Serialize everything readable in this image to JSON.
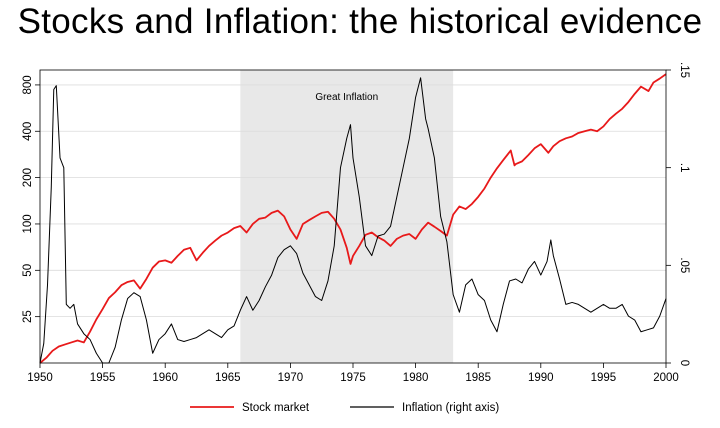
{
  "title": "Stocks and Inflation: the historical evidence",
  "chart_data": {
    "type": "line",
    "title": "Stocks and Inflation: the historical evidence",
    "x_range": [
      1950,
      2000
    ],
    "x_ticks": [
      1950,
      1955,
      1960,
      1965,
      1970,
      1975,
      1980,
      1985,
      1990,
      1995,
      2000
    ],
    "left_axis": {
      "scale": "log",
      "range": [
        12.5,
        1000
      ],
      "ticks": [
        25,
        50,
        100,
        200,
        400,
        800
      ],
      "tick_labels": [
        "25",
        "50",
        "100",
        "200",
        "400",
        "800"
      ]
    },
    "right_axis": {
      "scale": "linear",
      "range": [
        0,
        0.15
      ],
      "ticks": [
        0,
        0.05,
        0.1,
        0.15
      ],
      "tick_labels": [
        "0",
        ".05",
        ".1",
        ".15"
      ]
    },
    "grid": true,
    "shaded_region": {
      "from": 1966,
      "to": 1983,
      "label": "Great Inflation",
      "color": "#e8e8e8"
    },
    "legend_position": "bottom",
    "series": [
      {
        "name": "Stock market",
        "axis": "left",
        "color": "#e8191a",
        "points": [
          [
            1950.0,
            12.5
          ],
          [
            1950.5,
            13.5
          ],
          [
            1951.0,
            15.0
          ],
          [
            1951.5,
            16.0
          ],
          [
            1952.0,
            16.5
          ],
          [
            1952.5,
            17.0
          ],
          [
            1953.0,
            17.5
          ],
          [
            1953.5,
            17.0
          ],
          [
            1954.0,
            20.0
          ],
          [
            1954.5,
            24.0
          ],
          [
            1955.0,
            28.0
          ],
          [
            1955.5,
            33.0
          ],
          [
            1956.0,
            36.0
          ],
          [
            1956.5,
            40.0
          ],
          [
            1957.0,
            42.0
          ],
          [
            1957.5,
            43.0
          ],
          [
            1958.0,
            38.0
          ],
          [
            1958.5,
            44.0
          ],
          [
            1959.0,
            52.0
          ],
          [
            1959.5,
            57.0
          ],
          [
            1960.0,
            58.0
          ],
          [
            1960.5,
            56.0
          ],
          [
            1961.0,
            62.0
          ],
          [
            1961.5,
            68.0
          ],
          [
            1962.0,
            70.0
          ],
          [
            1962.5,
            58.0
          ],
          [
            1963.0,
            65.0
          ],
          [
            1963.5,
            72.0
          ],
          [
            1964.0,
            78.0
          ],
          [
            1964.5,
            84.0
          ],
          [
            1965.0,
            88.0
          ],
          [
            1965.5,
            94.0
          ],
          [
            1966.0,
            97.0
          ],
          [
            1966.5,
            88.0
          ],
          [
            1967.0,
            100.0
          ],
          [
            1967.5,
            108.0
          ],
          [
            1968.0,
            110.0
          ],
          [
            1968.5,
            118.0
          ],
          [
            1969.0,
            122.0
          ],
          [
            1969.5,
            112.0
          ],
          [
            1970.0,
            92.0
          ],
          [
            1970.5,
            80.0
          ],
          [
            1971.0,
            100.0
          ],
          [
            1971.5,
            106.0
          ],
          [
            1972.0,
            112.0
          ],
          [
            1972.5,
            118.0
          ],
          [
            1973.0,
            120.0
          ],
          [
            1973.5,
            108.0
          ],
          [
            1974.0,
            92.0
          ],
          [
            1974.5,
            70.0
          ],
          [
            1974.8,
            55.0
          ],
          [
            1975.0,
            62.0
          ],
          [
            1975.5,
            72.0
          ],
          [
            1976.0,
            85.0
          ],
          [
            1976.5,
            88.0
          ],
          [
            1977.0,
            82.0
          ],
          [
            1977.5,
            78.0
          ],
          [
            1978.0,
            72.0
          ],
          [
            1978.5,
            80.0
          ],
          [
            1979.0,
            84.0
          ],
          [
            1979.5,
            86.0
          ],
          [
            1980.0,
            80.0
          ],
          [
            1980.5,
            92.0
          ],
          [
            1981.0,
            102.0
          ],
          [
            1981.5,
            96.0
          ],
          [
            1982.0,
            90.0
          ],
          [
            1982.5,
            84.0
          ],
          [
            1983.0,
            115.0
          ],
          [
            1983.5,
            130.0
          ],
          [
            1984.0,
            125.0
          ],
          [
            1984.5,
            135.0
          ],
          [
            1985.0,
            150.0
          ],
          [
            1985.5,
            170.0
          ],
          [
            1986.0,
            200.0
          ],
          [
            1986.5,
            230.0
          ],
          [
            1987.0,
            260.0
          ],
          [
            1987.6,
            300.0
          ],
          [
            1987.9,
            240.0
          ],
          [
            1988.0,
            245.0
          ],
          [
            1988.5,
            255.0
          ],
          [
            1989.0,
            280.0
          ],
          [
            1989.5,
            310.0
          ],
          [
            1990.0,
            330.0
          ],
          [
            1990.6,
            290.0
          ],
          [
            1991.0,
            320.0
          ],
          [
            1991.5,
            345.0
          ],
          [
            1992.0,
            360.0
          ],
          [
            1992.5,
            370.0
          ],
          [
            1993.0,
            390.0
          ],
          [
            1993.5,
            400.0
          ],
          [
            1994.0,
            410.0
          ],
          [
            1994.5,
            400.0
          ],
          [
            1995.0,
            430.0
          ],
          [
            1995.5,
            480.0
          ],
          [
            1996.0,
            520.0
          ],
          [
            1996.5,
            560.0
          ],
          [
            1997.0,
            620.0
          ],
          [
            1997.5,
            700.0
          ],
          [
            1998.0,
            780.0
          ],
          [
            1998.6,
            730.0
          ],
          [
            1999.0,
            830.0
          ],
          [
            1999.5,
            880.0
          ],
          [
            2000.0,
            940.0
          ]
        ]
      },
      {
        "name": "Inflation (right axis)",
        "axis": "right",
        "color": "#000000",
        "points": [
          [
            1950.0,
            0.0
          ],
          [
            1950.3,
            0.01
          ],
          [
            1950.6,
            0.04
          ],
          [
            1950.9,
            0.09
          ],
          [
            1951.1,
            0.14
          ],
          [
            1951.3,
            0.142
          ],
          [
            1951.6,
            0.105
          ],
          [
            1951.9,
            0.1
          ],
          [
            1952.1,
            0.03
          ],
          [
            1952.4,
            0.028
          ],
          [
            1952.7,
            0.03
          ],
          [
            1953.0,
            0.02
          ],
          [
            1953.5,
            0.015
          ],
          [
            1954.0,
            0.012
          ],
          [
            1954.5,
            0.005
          ],
          [
            1955.0,
            0.0
          ],
          [
            1955.5,
            0.0
          ],
          [
            1956.0,
            0.008
          ],
          [
            1956.5,
            0.022
          ],
          [
            1957.0,
            0.033
          ],
          [
            1957.5,
            0.036
          ],
          [
            1958.0,
            0.034
          ],
          [
            1958.5,
            0.022
          ],
          [
            1959.0,
            0.005
          ],
          [
            1959.5,
            0.012
          ],
          [
            1960.0,
            0.015
          ],
          [
            1960.5,
            0.02
          ],
          [
            1961.0,
            0.012
          ],
          [
            1961.5,
            0.011
          ],
          [
            1962.0,
            0.012
          ],
          [
            1962.5,
            0.013
          ],
          [
            1963.0,
            0.015
          ],
          [
            1963.5,
            0.017
          ],
          [
            1964.0,
            0.015
          ],
          [
            1964.5,
            0.013
          ],
          [
            1965.0,
            0.017
          ],
          [
            1965.5,
            0.019
          ],
          [
            1966.0,
            0.027
          ],
          [
            1966.5,
            0.034
          ],
          [
            1967.0,
            0.027
          ],
          [
            1967.5,
            0.032
          ],
          [
            1968.0,
            0.039
          ],
          [
            1968.5,
            0.045
          ],
          [
            1969.0,
            0.054
          ],
          [
            1969.5,
            0.058
          ],
          [
            1970.0,
            0.06
          ],
          [
            1970.5,
            0.056
          ],
          [
            1971.0,
            0.046
          ],
          [
            1971.5,
            0.04
          ],
          [
            1972.0,
            0.034
          ],
          [
            1972.5,
            0.032
          ],
          [
            1973.0,
            0.042
          ],
          [
            1973.5,
            0.06
          ],
          [
            1974.0,
            0.1
          ],
          [
            1974.5,
            0.115
          ],
          [
            1974.8,
            0.122
          ],
          [
            1975.0,
            0.105
          ],
          [
            1975.5,
            0.085
          ],
          [
            1976.0,
            0.06
          ],
          [
            1976.5,
            0.055
          ],
          [
            1977.0,
            0.065
          ],
          [
            1977.5,
            0.066
          ],
          [
            1978.0,
            0.07
          ],
          [
            1978.5,
            0.085
          ],
          [
            1979.0,
            0.1
          ],
          [
            1979.5,
            0.115
          ],
          [
            1980.0,
            0.136
          ],
          [
            1980.4,
            0.146
          ],
          [
            1980.8,
            0.125
          ],
          [
            1981.0,
            0.12
          ],
          [
            1981.5,
            0.105
          ],
          [
            1982.0,
            0.075
          ],
          [
            1982.5,
            0.062
          ],
          [
            1983.0,
            0.035
          ],
          [
            1983.5,
            0.026
          ],
          [
            1984.0,
            0.04
          ],
          [
            1984.5,
            0.043
          ],
          [
            1985.0,
            0.035
          ],
          [
            1985.5,
            0.032
          ],
          [
            1986.0,
            0.022
          ],
          [
            1986.5,
            0.016
          ],
          [
            1987.0,
            0.03
          ],
          [
            1987.5,
            0.042
          ],
          [
            1988.0,
            0.043
          ],
          [
            1988.5,
            0.041
          ],
          [
            1989.0,
            0.048
          ],
          [
            1989.5,
            0.052
          ],
          [
            1990.0,
            0.045
          ],
          [
            1990.5,
            0.052
          ],
          [
            1990.8,
            0.063
          ],
          [
            1991.0,
            0.055
          ],
          [
            1991.5,
            0.043
          ],
          [
            1992.0,
            0.03
          ],
          [
            1992.5,
            0.031
          ],
          [
            1993.0,
            0.03
          ],
          [
            1993.5,
            0.028
          ],
          [
            1994.0,
            0.026
          ],
          [
            1994.5,
            0.028
          ],
          [
            1995.0,
            0.03
          ],
          [
            1995.5,
            0.028
          ],
          [
            1996.0,
            0.028
          ],
          [
            1996.5,
            0.03
          ],
          [
            1997.0,
            0.024
          ],
          [
            1997.5,
            0.022
          ],
          [
            1998.0,
            0.016
          ],
          [
            1998.5,
            0.017
          ],
          [
            1999.0,
            0.018
          ],
          [
            1999.5,
            0.024
          ],
          [
            2000.0,
            0.033
          ]
        ]
      }
    ]
  }
}
